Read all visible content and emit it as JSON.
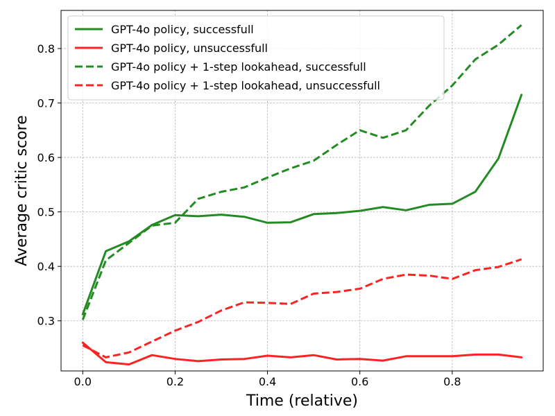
{
  "chart_data": {
    "type": "line",
    "title": "",
    "xlabel": "Time (relative)",
    "ylabel": "Average critic score",
    "xlim": [
      -0.047,
      0.997
    ],
    "ylim": [
      0.208,
      0.87
    ],
    "xticks": [
      0.0,
      0.2,
      0.4,
      0.6,
      0.8
    ],
    "yticks": [
      0.2,
      0.3,
      0.4,
      0.5,
      0.6,
      0.7,
      0.8
    ],
    "grid": true,
    "legend_position": "top-left",
    "x": [
      0.0,
      0.05,
      0.1,
      0.15,
      0.2,
      0.25,
      0.3,
      0.35,
      0.4,
      0.45,
      0.5,
      0.55,
      0.6,
      0.65,
      0.7,
      0.75,
      0.8,
      0.85,
      0.9,
      0.95
    ],
    "series": [
      {
        "name": "GPT-4o policy, successfull",
        "color": "#228b22",
        "style": "solid",
        "values": [
          0.312,
          0.428,
          0.446,
          0.476,
          0.494,
          0.492,
          0.495,
          0.491,
          0.48,
          0.481,
          0.496,
          0.498,
          0.502,
          0.509,
          0.503,
          0.513,
          0.515,
          0.537,
          0.598,
          0.715
        ]
      },
      {
        "name": "GPT-4o policy, unsuccessfull",
        "color": "#ff2222",
        "style": "solid",
        "values": [
          0.26,
          0.224,
          0.22,
          0.237,
          0.23,
          0.226,
          0.229,
          0.23,
          0.236,
          0.233,
          0.237,
          0.229,
          0.23,
          0.227,
          0.235,
          0.235,
          0.235,
          0.238,
          0.238,
          0.233
        ]
      },
      {
        "name": "GPT-4o policy + 1-step lookahead, successfull",
        "color": "#228b22",
        "style": "dashed",
        "values": [
          0.302,
          0.411,
          0.443,
          0.475,
          0.48,
          0.524,
          0.537,
          0.545,
          0.563,
          0.58,
          0.594,
          0.623,
          0.65,
          0.636,
          0.65,
          0.695,
          0.732,
          0.78,
          0.807,
          0.843
        ]
      },
      {
        "name": "GPT-4o policy + 1-step lookahead, unsuccessfull",
        "color": "#ff2222",
        "style": "dashed",
        "values": [
          0.255,
          0.233,
          0.242,
          0.262,
          0.282,
          0.298,
          0.319,
          0.334,
          0.333,
          0.331,
          0.35,
          0.353,
          0.359,
          0.377,
          0.385,
          0.383,
          0.377,
          0.393,
          0.399,
          0.413
        ]
      }
    ]
  }
}
